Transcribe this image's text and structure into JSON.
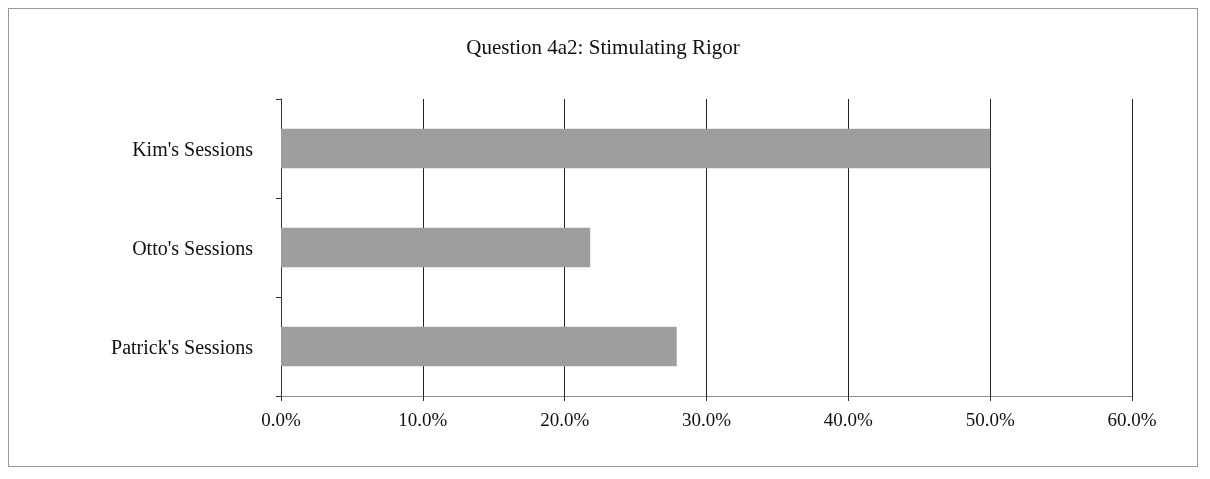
{
  "chart_data": {
    "type": "bar",
    "orientation": "horizontal",
    "title": "Question 4a2: Stimulating Rigor",
    "categories": [
      "Kim's Sessions",
      "Otto's Sessions",
      "Patrick's Sessions"
    ],
    "values": [
      50,
      21.8,
      27.9
    ],
    "color": "#9e9e9e",
    "xlim": [
      0,
      60
    ],
    "xticks": [
      {
        "value": 0,
        "label": "0.0%"
      },
      {
        "value": 10,
        "label": "10.0%"
      },
      {
        "value": 20,
        "label": "20.0%"
      },
      {
        "value": 30,
        "label": "30.0%"
      },
      {
        "value": 40,
        "label": "40.0%"
      },
      {
        "value": 50,
        "label": "50.0%"
      },
      {
        "value": 60,
        "label": "60.0%"
      }
    ],
    "grid": "x"
  }
}
